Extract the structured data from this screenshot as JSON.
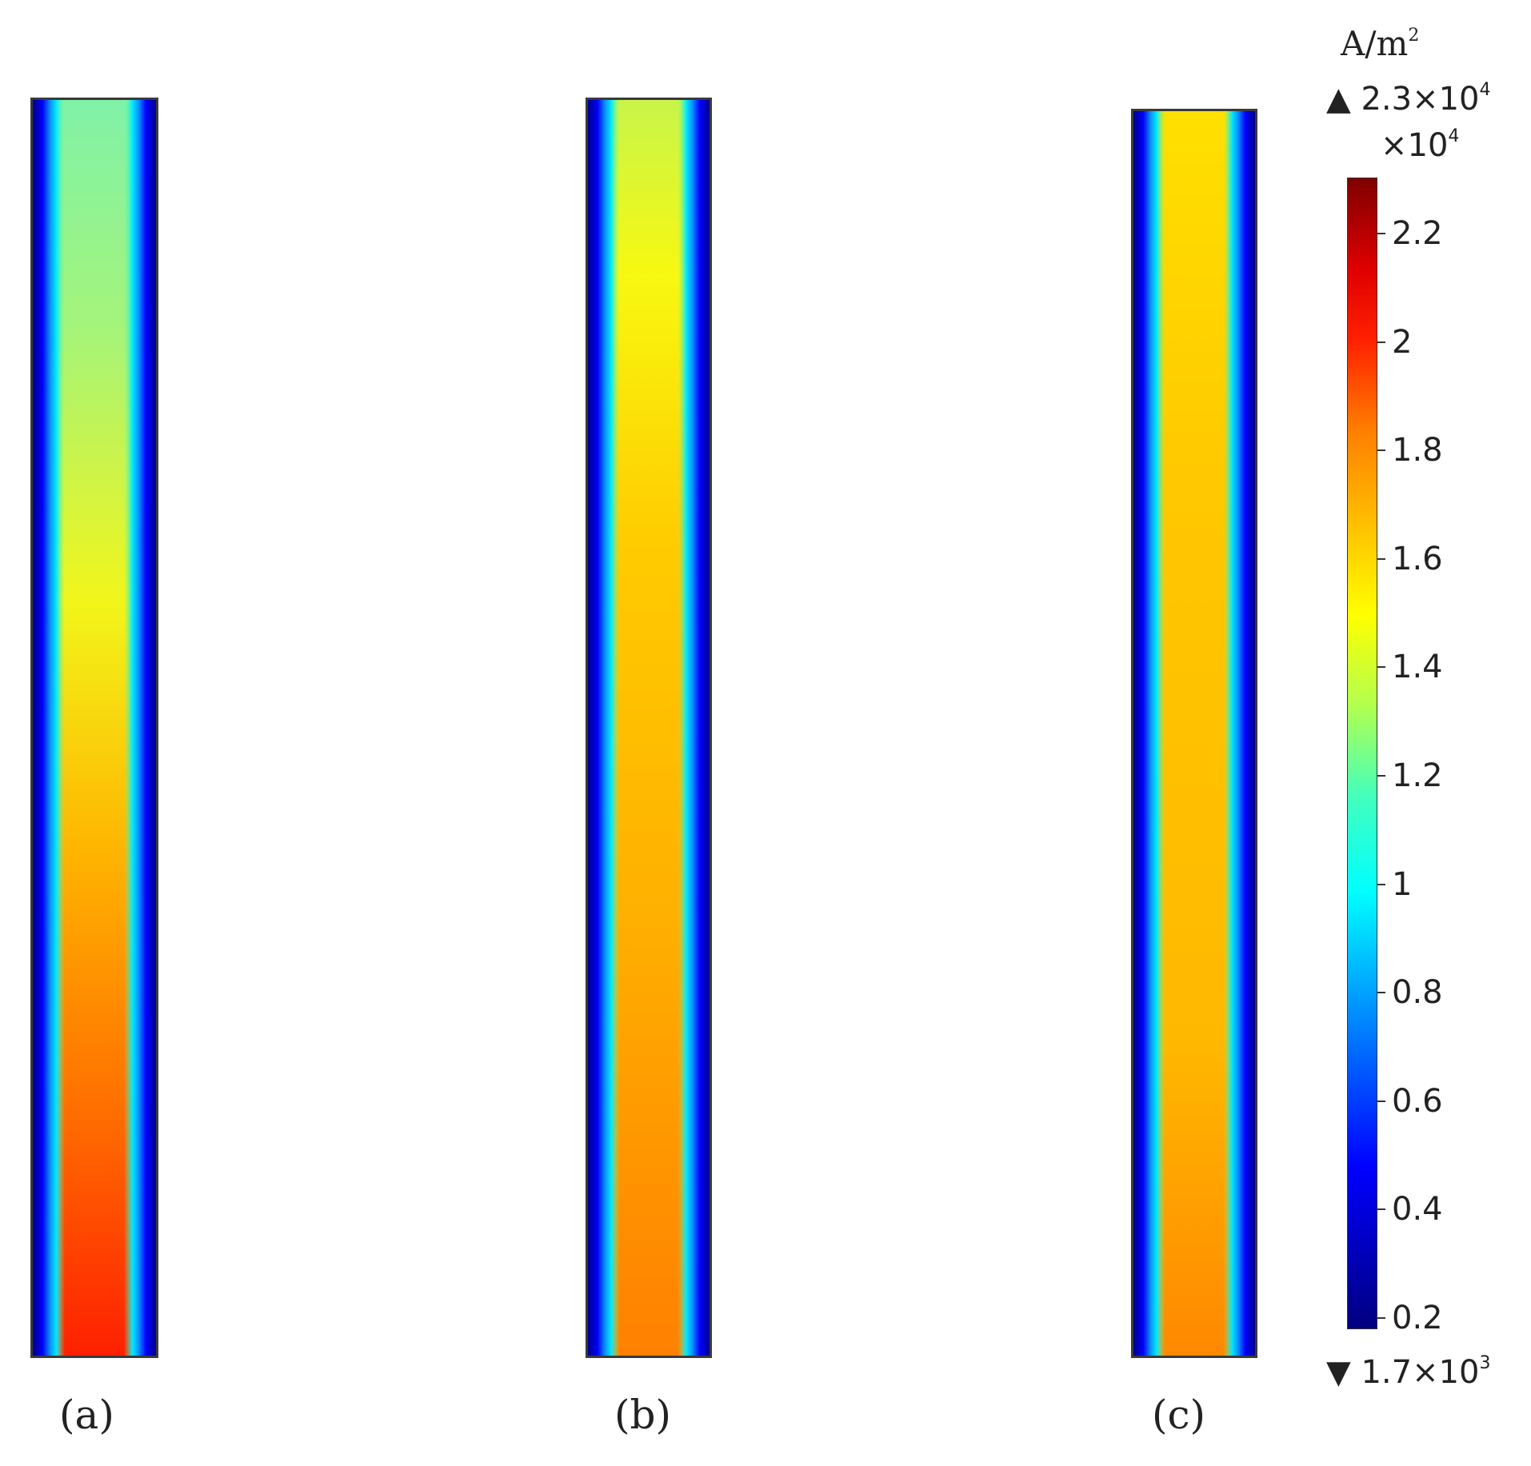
{
  "panels": [
    {
      "caption": "(a)"
    },
    {
      "caption": "(b)"
    },
    {
      "caption": "(c)"
    }
  ],
  "colorbar": {
    "unit": "A/m",
    "unit_exp": "2",
    "max_label": "▲ 2.3×10",
    "max_exp": "4",
    "multiplier": "×10",
    "multiplier_exp": "4",
    "min_label": "▼ 1.7×10",
    "min_exp": "3",
    "ticks": [
      "2.2",
      "2",
      "1.8",
      "1.6",
      "1.4",
      "1.2",
      "1",
      "0.8",
      "0.6",
      "0.4",
      "0.2"
    ],
    "colormap": "jet"
  }
}
